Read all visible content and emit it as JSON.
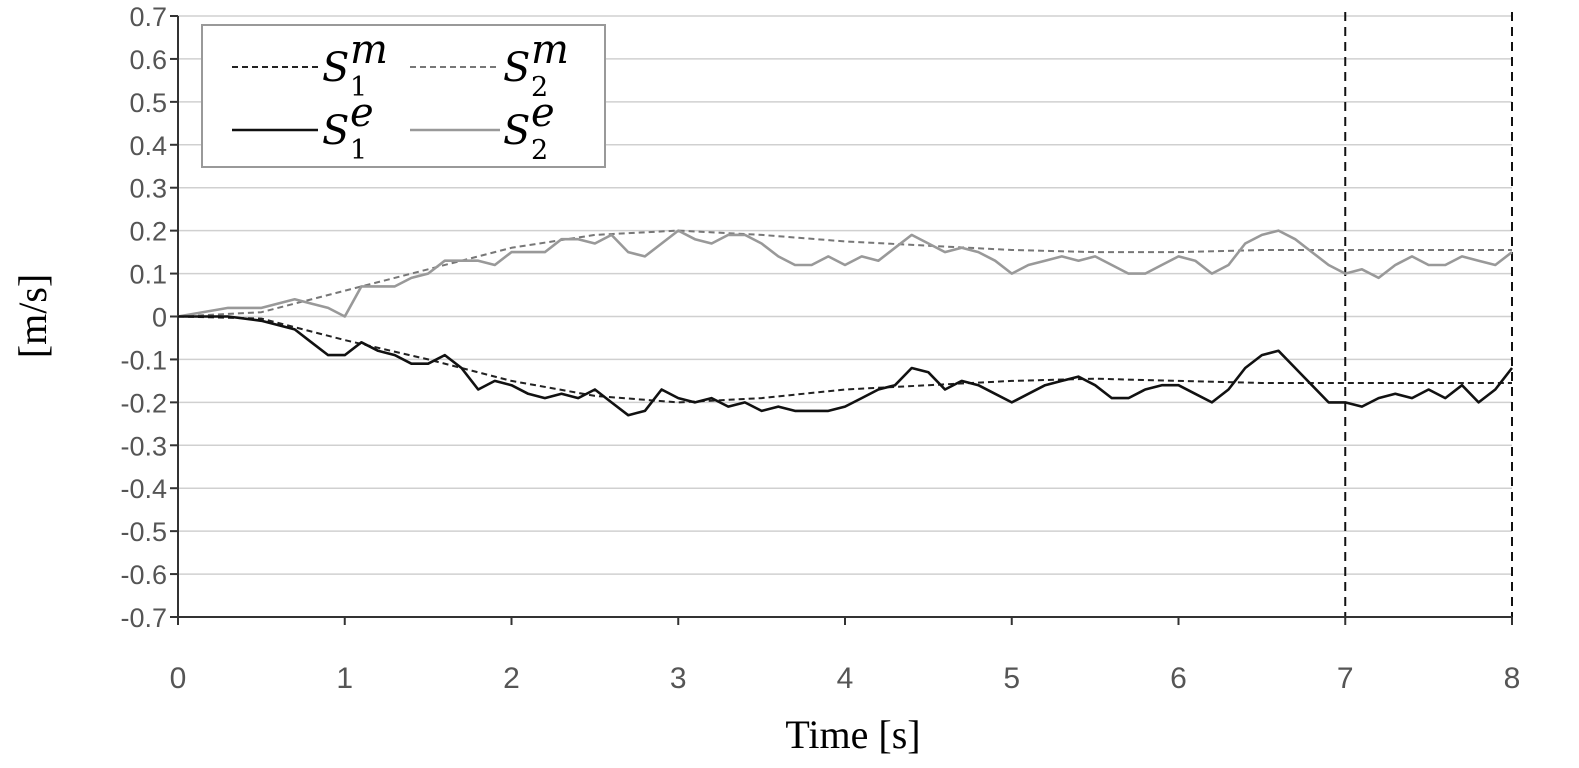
{
  "chart_data": {
    "type": "line",
    "title": "",
    "xlabel": "Time [s]",
    "ylabel": "[m/s]",
    "xlim": [
      0,
      8
    ],
    "ylim": [
      -0.7,
      0.7
    ],
    "x_ticks": [
      0,
      1,
      2,
      3,
      4,
      5,
      6,
      7,
      8
    ],
    "x_tick_labels": [
      "0",
      "1",
      "2",
      "3",
      "4",
      "5",
      "6",
      "7",
      "8"
    ],
    "y_tick_labels": [
      "0.7",
      "0.6",
      "0.5",
      "0.4",
      "0.3",
      "0.2",
      "0.1",
      "0",
      "-0.1",
      "-0.2",
      "-0.3",
      "-0.4",
      "-0.5",
      "-0.6",
      "-0.7"
    ],
    "grid": "horizontal",
    "vertical_markers": [
      7,
      8
    ],
    "legend": {
      "placement": "top-left",
      "entries": [
        {
          "symbol": "S",
          "sup": "m",
          "sub": "1",
          "series": 0
        },
        {
          "symbol": "S",
          "sup": "m",
          "sub": "2",
          "series": 1
        },
        {
          "symbol": "S",
          "sup": "e",
          "sub": "1",
          "series": 2
        },
        {
          "symbol": "S",
          "sup": "e",
          "sub": "2",
          "series": 3
        }
      ]
    },
    "series": [
      {
        "name": "S1m",
        "color": "#222222",
        "style": "dashed",
        "x": [
          0,
          0.5,
          1,
          1.5,
          2,
          2.5,
          3,
          3.5,
          4,
          4.5,
          5,
          5.5,
          6,
          6.5,
          7,
          7.5,
          8
        ],
        "y": [
          0,
          -0.005,
          -0.055,
          -0.1,
          -0.15,
          -0.185,
          -0.2,
          -0.19,
          -0.17,
          -0.16,
          -0.15,
          -0.145,
          -0.15,
          -0.155,
          -0.155,
          -0.155,
          -0.155
        ]
      },
      {
        "name": "S2m",
        "color": "#777777",
        "style": "dashed",
        "x": [
          0,
          0.5,
          1,
          1.5,
          2,
          2.5,
          3,
          3.5,
          4,
          4.5,
          5,
          5.5,
          6,
          6.5,
          7,
          7.5,
          8
        ],
        "y": [
          0,
          0.01,
          0.06,
          0.11,
          0.16,
          0.19,
          0.2,
          0.19,
          0.175,
          0.165,
          0.155,
          0.15,
          0.15,
          0.155,
          0.155,
          0.155,
          0.155
        ]
      },
      {
        "name": "S1e",
        "color": "#111111",
        "style": "solid",
        "x": [
          0,
          0.3,
          0.5,
          0.7,
          0.8,
          0.9,
          1.0,
          1.1,
          1.2,
          1.3,
          1.4,
          1.5,
          1.6,
          1.7,
          1.8,
          1.9,
          2.0,
          2.1,
          2.2,
          2.3,
          2.4,
          2.5,
          2.6,
          2.7,
          2.8,
          2.9,
          3.0,
          3.1,
          3.2,
          3.3,
          3.4,
          3.5,
          3.6,
          3.7,
          3.8,
          3.9,
          4.0,
          4.1,
          4.2,
          4.3,
          4.4,
          4.5,
          4.6,
          4.7,
          4.8,
          4.9,
          5.0,
          5.1,
          5.2,
          5.3,
          5.4,
          5.5,
          5.6,
          5.7,
          5.8,
          5.9,
          6.0,
          6.1,
          6.2,
          6.3,
          6.4,
          6.5,
          6.6,
          6.7,
          6.8,
          6.9,
          7.0,
          7.1,
          7.2,
          7.3,
          7.4,
          7.5,
          7.6,
          7.7,
          7.8,
          7.9,
          8.0
        ],
        "y": [
          0,
          0,
          -0.01,
          -0.03,
          -0.06,
          -0.09,
          -0.09,
          -0.06,
          -0.08,
          -0.09,
          -0.11,
          -0.11,
          -0.09,
          -0.12,
          -0.17,
          -0.15,
          -0.16,
          -0.18,
          -0.19,
          -0.18,
          -0.19,
          -0.17,
          -0.2,
          -0.23,
          -0.22,
          -0.17,
          -0.19,
          -0.2,
          -0.19,
          -0.21,
          -0.2,
          -0.22,
          -0.21,
          -0.22,
          -0.22,
          -0.22,
          -0.21,
          -0.19,
          -0.17,
          -0.16,
          -0.12,
          -0.13,
          -0.17,
          -0.15,
          -0.16,
          -0.18,
          -0.2,
          -0.18,
          -0.16,
          -0.15,
          -0.14,
          -0.16,
          -0.19,
          -0.19,
          -0.17,
          -0.16,
          -0.16,
          -0.18,
          -0.2,
          -0.17,
          -0.12,
          -0.09,
          -0.08,
          -0.12,
          -0.16,
          -0.2,
          -0.2,
          -0.21,
          -0.19,
          -0.18,
          -0.19,
          -0.17,
          -0.19,
          -0.16,
          -0.2,
          -0.17,
          -0.12
        ]
      },
      {
        "name": "S2e",
        "color": "#999999",
        "style": "solid",
        "x": [
          0,
          0.3,
          0.5,
          0.7,
          0.8,
          0.9,
          1.0,
          1.1,
          1.2,
          1.3,
          1.4,
          1.5,
          1.6,
          1.7,
          1.8,
          1.9,
          2.0,
          2.1,
          2.2,
          2.3,
          2.4,
          2.5,
          2.6,
          2.7,
          2.8,
          2.9,
          3.0,
          3.1,
          3.2,
          3.3,
          3.4,
          3.5,
          3.6,
          3.7,
          3.8,
          3.9,
          4.0,
          4.1,
          4.2,
          4.3,
          4.4,
          4.5,
          4.6,
          4.7,
          4.8,
          4.9,
          5.0,
          5.1,
          5.2,
          5.3,
          5.4,
          5.5,
          5.6,
          5.7,
          5.8,
          5.9,
          6.0,
          6.1,
          6.2,
          6.3,
          6.4,
          6.5,
          6.6,
          6.7,
          6.8,
          6.9,
          7.0,
          7.1,
          7.2,
          7.3,
          7.4,
          7.5,
          7.6,
          7.7,
          7.8,
          7.9,
          8.0
        ],
        "y": [
          0,
          0.02,
          0.02,
          0.04,
          0.03,
          0.02,
          0,
          0.07,
          0.07,
          0.07,
          0.09,
          0.1,
          0.13,
          0.13,
          0.13,
          0.12,
          0.15,
          0.15,
          0.15,
          0.18,
          0.18,
          0.17,
          0.19,
          0.15,
          0.14,
          0.17,
          0.2,
          0.18,
          0.17,
          0.19,
          0.19,
          0.17,
          0.14,
          0.12,
          0.12,
          0.14,
          0.12,
          0.14,
          0.13,
          0.16,
          0.19,
          0.17,
          0.15,
          0.16,
          0.15,
          0.13,
          0.1,
          0.12,
          0.13,
          0.14,
          0.13,
          0.14,
          0.12,
          0.1,
          0.1,
          0.12,
          0.14,
          0.13,
          0.1,
          0.12,
          0.17,
          0.19,
          0.2,
          0.18,
          0.15,
          0.12,
          0.1,
          0.11,
          0.09,
          0.12,
          0.14,
          0.12,
          0.12,
          0.14,
          0.13,
          0.12,
          0.15
        ]
      }
    ]
  }
}
